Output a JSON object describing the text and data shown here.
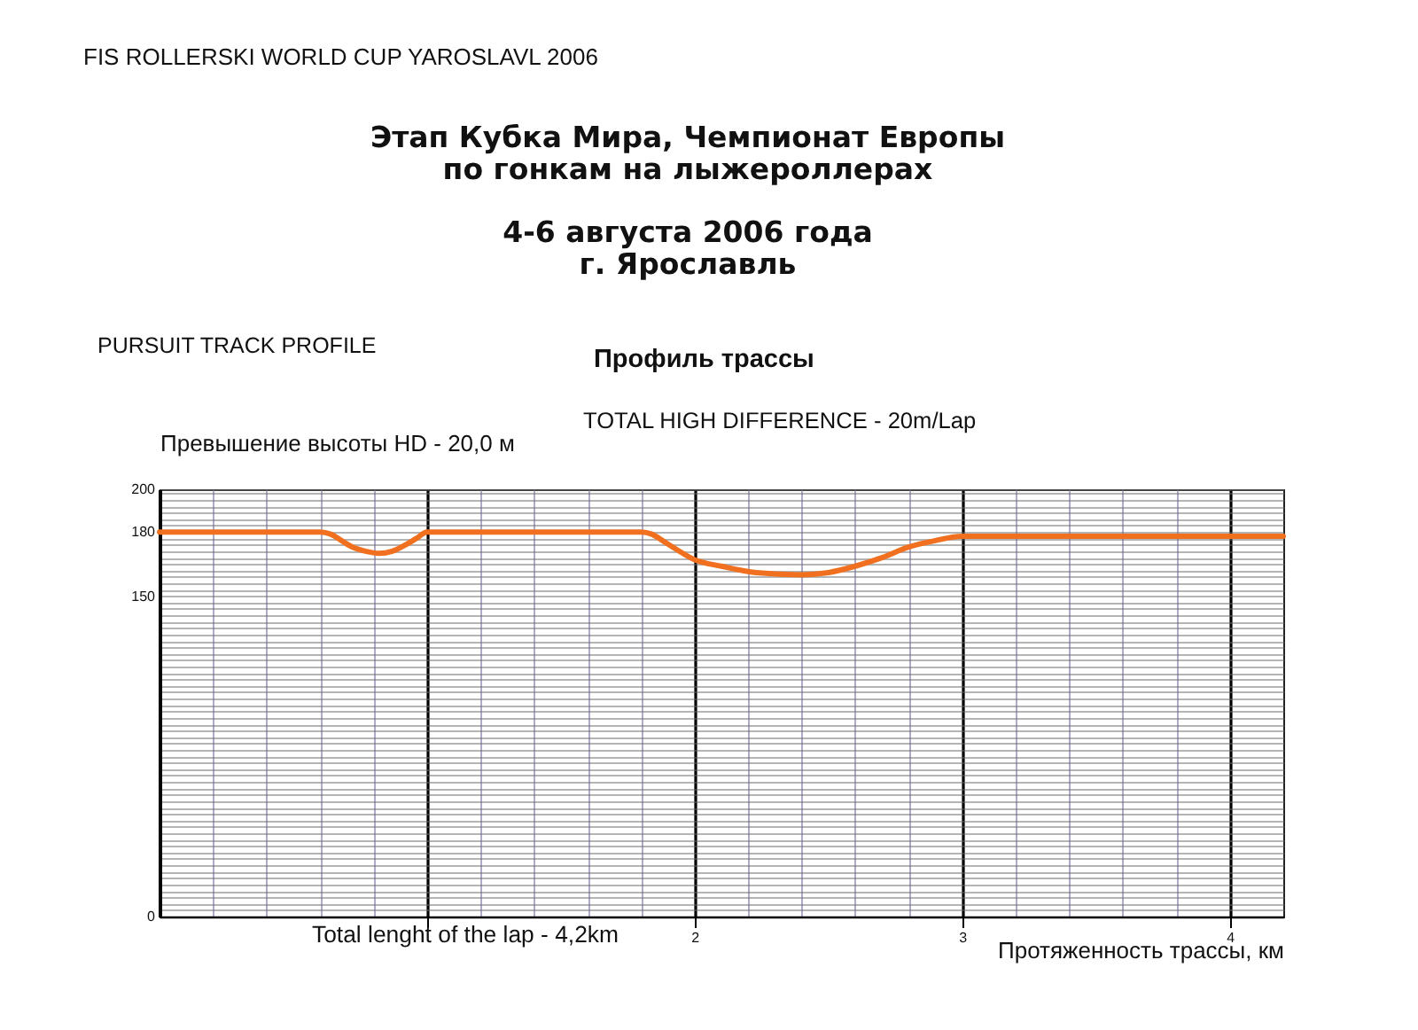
{
  "chart_data": {
    "type": "line",
    "title": "Этап Кубка Мира, Чемпионат Европы\nпо гонкам на лыжероллерах",
    "subtitle": "4-6 августа 2006 года\nг. Ярославль",
    "xlabel": "Протяженность трассы, км",
    "ylabel": "Превышение высоты HD - 20,0 м",
    "annotations": [
      "FIS ROLLERSKI WORLD CUP  YAROSLAVL 2006",
      "PURSUIT TRACK PROFILE",
      "Профиль трассы",
      "TOTAL HIGH DIFFERENCE - 20m/Lap",
      "Total lenght of the lap - 4,2km"
    ],
    "x": [
      0,
      0.6,
      0.64,
      0.68,
      0.72,
      0.77,
      0.82,
      0.87,
      0.92,
      0.96,
      1.0,
      1.8,
      1.84,
      1.88,
      1.93,
      2.0,
      2.1,
      2.23,
      2.4,
      2.5,
      2.6,
      2.7,
      2.8,
      2.9,
      3.0,
      4.2
    ],
    "series": [
      {
        "color": "#f07020",
        "values": [
          180,
          180,
          179,
          176,
          173,
          171,
          170,
          171,
          174,
          177,
          180,
          180,
          179,
          176,
          172,
          167,
          164,
          161,
          160,
          161,
          164,
          168,
          173,
          176,
          178,
          178
        ]
      }
    ],
    "xlim": [
      0,
      4.2
    ],
    "xticks": [
      {
        "value": 0.2,
        "label": null
      },
      {
        "value": 0.4,
        "label": null
      },
      {
        "value": 0.6,
        "label": null
      },
      {
        "value": 0.8,
        "label": null
      },
      {
        "value": 1,
        "label": null
      },
      {
        "value": 1.2,
        "label": null
      },
      {
        "value": 1.4,
        "label": null
      },
      {
        "value": 1.6,
        "label": null
      },
      {
        "value": 1.8,
        "label": null
      },
      2,
      {
        "value": 2.2,
        "label": null
      },
      {
        "value": 2.4,
        "label": null
      },
      {
        "value": 2.6,
        "label": null
      },
      {
        "value": 2.8,
        "label": null
      },
      3,
      {
        "value": 3.2,
        "label": null
      },
      {
        "value": 3.4,
        "label": null
      },
      {
        "value": 3.6,
        "label": null
      },
      {
        "value": 3.8,
        "label": null
      },
      4
    ],
    "ylim": [
      0,
      200
    ],
    "yticks": [
      0,
      {
        "value": 3,
        "label": null
      },
      {
        "value": 6,
        "label": null
      },
      {
        "value": 9,
        "label": null
      },
      {
        "value": 12,
        "label": null
      },
      {
        "value": 15,
        "label": null
      },
      {
        "value": 18,
        "label": null
      },
      {
        "value": 21,
        "label": null
      },
      {
        "value": 24,
        "label": null
      },
      {
        "value": 27,
        "label": null
      },
      {
        "value": 30,
        "label": null
      },
      {
        "value": 33,
        "label": null
      },
      {
        "value": 36,
        "label": null
      },
      {
        "value": 39,
        "label": null
      },
      {
        "value": 42,
        "label": null
      },
      {
        "value": 45,
        "label": null
      },
      {
        "value": 48,
        "label": null
      },
      {
        "value": 51,
        "label": null
      },
      {
        "value": 54,
        "label": null
      },
      {
        "value": 57,
        "label": null
      },
      {
        "value": 60,
        "label": null
      },
      {
        "value": 63,
        "label": null
      },
      {
        "value": 66,
        "label": null
      },
      {
        "value": 69,
        "label": null
      },
      {
        "value": 72,
        "label": null
      },
      {
        "value": 75,
        "label": null
      },
      {
        "value": 78,
        "label": null
      },
      {
        "value": 81,
        "label": null
      },
      {
        "value": 84,
        "label": null
      },
      {
        "value": 87,
        "label": null
      },
      {
        "value": 90,
        "label": null
      },
      {
        "value": 93,
        "label": null
      },
      {
        "value": 96,
        "label": null
      },
      {
        "value": 99,
        "label": null
      },
      {
        "value": 102,
        "label": null
      },
      {
        "value": 105,
        "label": null
      },
      {
        "value": 108,
        "label": null
      },
      {
        "value": 111,
        "label": null
      },
      {
        "value": 114,
        "label": null
      },
      {
        "value": 117,
        "label": null
      },
      {
        "value": 120,
        "label": null
      },
      {
        "value": 123,
        "label": null
      },
      {
        "value": 126,
        "label": null
      },
      {
        "value": 129,
        "label": null
      },
      {
        "value": 132,
        "label": null
      },
      {
        "value": 135,
        "label": null
      },
      {
        "value": 138,
        "label": null
      },
      {
        "value": 141,
        "label": null
      },
      {
        "value": 144,
        "label": null
      },
      {
        "value": 147,
        "label": null
      },
      150,
      {
        "value": 153,
        "label": null
      },
      {
        "value": 156,
        "label": null
      },
      {
        "value": 159,
        "label": null
      },
      {
        "value": 162,
        "label": null
      },
      {
        "value": 165,
        "label": null
      },
      {
        "value": 168,
        "label": null
      },
      {
        "value": 171,
        "label": null
      },
      {
        "value": 174,
        "label": null
      },
      {
        "value": 177,
        "label": null
      },
      180,
      {
        "value": 183,
        "label": null
      },
      {
        "value": 186,
        "label": null
      },
      {
        "value": 189,
        "label": null
      },
      {
        "value": 192,
        "label": null
      },
      {
        "value": 195,
        "label": null
      },
      {
        "value": 198,
        "label": null
      },
      200
    ],
    "grid": true
  }
}
